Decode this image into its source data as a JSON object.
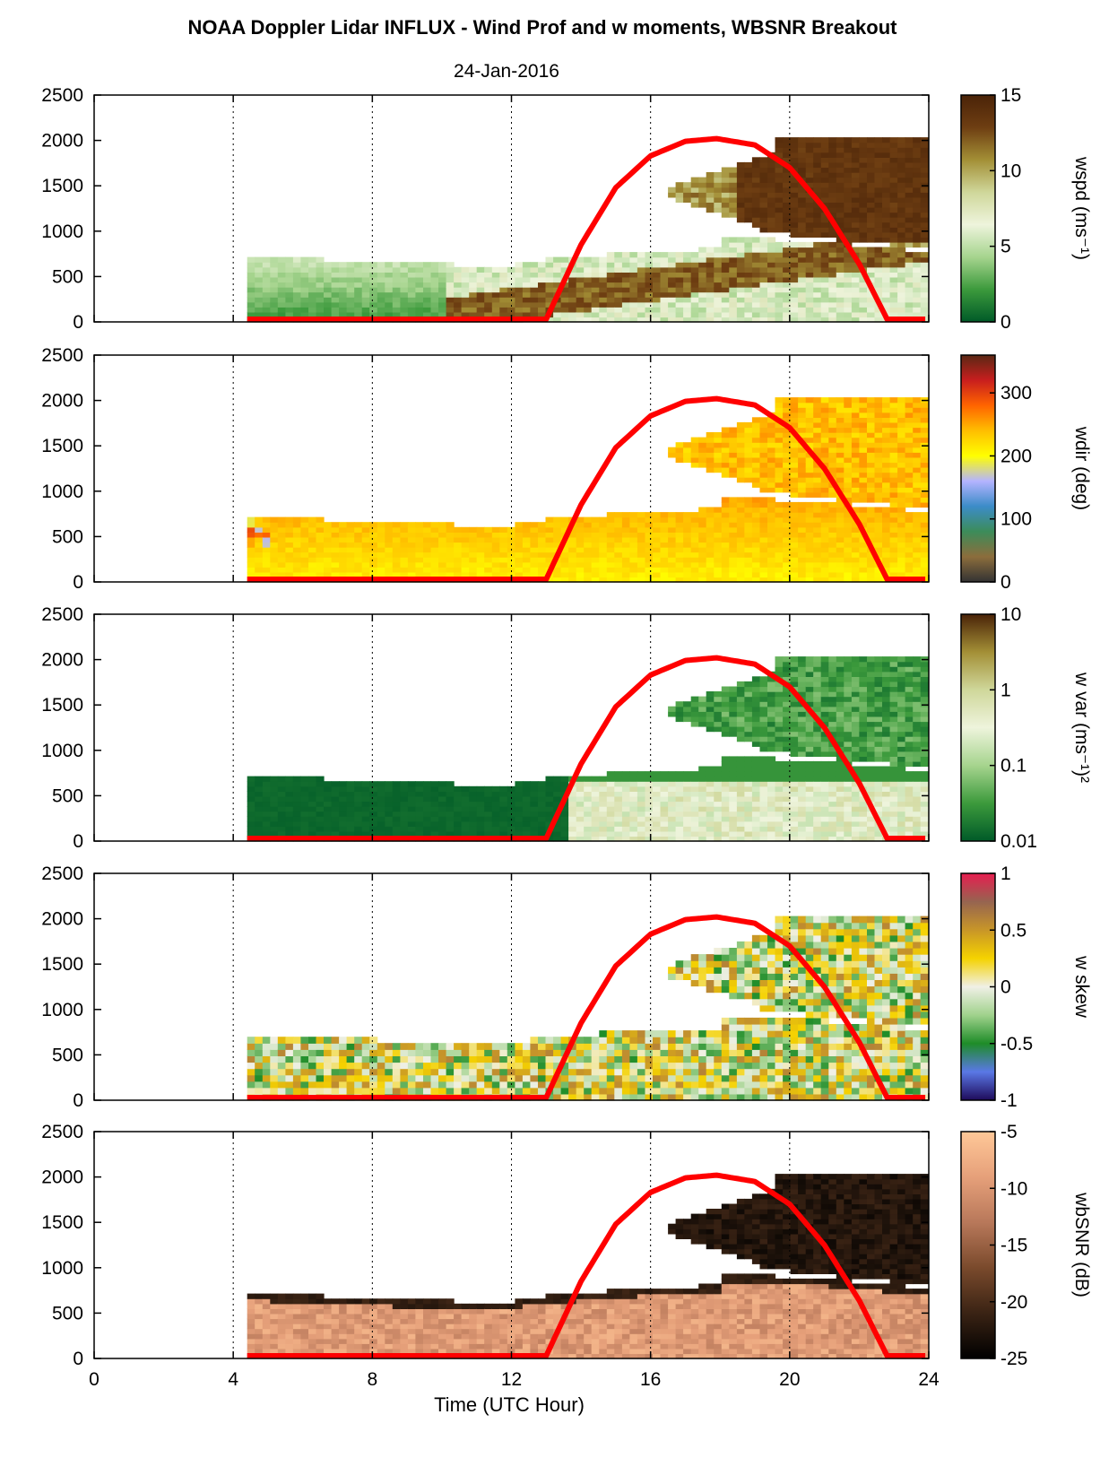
{
  "title": "NOAA Doppler Lidar INFLUX - Wind Prof and w moments, WBSNR Breakout",
  "date": "24-Jan-2016",
  "chart_data": {
    "type": "heatmap",
    "xlabel": "Time (UTC Hour)",
    "xlim": [
      0,
      24
    ],
    "xticks": [
      "0",
      "4",
      "8",
      "12",
      "16",
      "20",
      "24"
    ],
    "ylim": [
      0,
      2500
    ],
    "yticks": [
      "0",
      "500",
      "1000",
      "1500",
      "2000",
      "2500"
    ],
    "vertical_gridlines_at": [
      4,
      8,
      12,
      16,
      20,
      24
    ],
    "overlay_line": {
      "color": "#ff0000",
      "points": [
        [
          4.4,
          30
        ],
        [
          13.0,
          30
        ],
        [
          14,
          850
        ],
        [
          15,
          1480
        ],
        [
          16,
          1830
        ],
        [
          17,
          1990
        ],
        [
          17.9,
          2020
        ],
        [
          19,
          1950
        ],
        [
          20,
          1700
        ],
        [
          21,
          1250
        ],
        [
          22,
          640
        ],
        [
          22.8,
          30
        ],
        [
          24,
          30
        ]
      ]
    },
    "panels": [
      {
        "id": "wspd",
        "cblabel": "wspd (ms⁻¹)",
        "cbticks": [
          "0",
          "5",
          "10",
          "15"
        ],
        "cbrange": [
          0,
          15
        ],
        "colors": [
          "#005a28",
          "#3c9a3c",
          "#a6d48e",
          "#eef4dc",
          "#cfd79a",
          "#a38f36",
          "#6e3e12",
          "#4a2308"
        ],
        "fields": {
          "low_profile_top_start": 700,
          "low_profile_top_end": 750,
          "upper_layer_start_hour": 18.5,
          "upper_layer_top": 2030,
          "upper_layer_bottom": 800
        }
      },
      {
        "id": "wdir",
        "cblabel": "wdir (deg)",
        "cbticks": [
          "0",
          "100",
          "200",
          "300"
        ],
        "cbrange": [
          0,
          360
        ],
        "colors": [
          "#333333",
          "#8c6d3c",
          "#3c8c5a",
          "#3c8cc8",
          "#b4b4ff",
          "#ffff00",
          "#ffbe00",
          "#ff6400",
          "#c81e1e",
          "#5a2814"
        ],
        "fields": {}
      },
      {
        "id": "wvar",
        "cblabel": "w var (ms⁻¹)²",
        "cbticks": [
          "0.01",
          "0.1",
          "1",
          "10"
        ],
        "cbrange": [
          0.01,
          10
        ],
        "colors": [
          "#005a28",
          "#3c9a3c",
          "#a6d48e",
          "#eef4dc",
          "#cfd79a",
          "#a38f36",
          "#4a2308"
        ],
        "fields": {}
      },
      {
        "id": "wskew",
        "cblabel": "w skew",
        "cbticks": [
          "-1",
          "-0.5",
          "0",
          "0.5",
          "1"
        ],
        "cbrange": [
          -1,
          1
        ],
        "colors": [
          "#1e0a5a",
          "#5a78e6",
          "#1e8c28",
          "#a0d28c",
          "#f0f0e6",
          "#f5d200",
          "#c89628",
          "#966450",
          "#e61e50"
        ],
        "fields": {}
      },
      {
        "id": "wbsnr",
        "cblabel": "wbSNR (dB)",
        "cbticks": [
          "-25",
          "-20",
          "-15",
          "-10",
          "-5"
        ],
        "cbrange": [
          -25,
          -5
        ],
        "colors": [
          "#000000",
          "#3a2314",
          "#7a4a2c",
          "#b8785a",
          "#e6a07a",
          "#ffc898"
        ],
        "fields": {}
      }
    ]
  }
}
